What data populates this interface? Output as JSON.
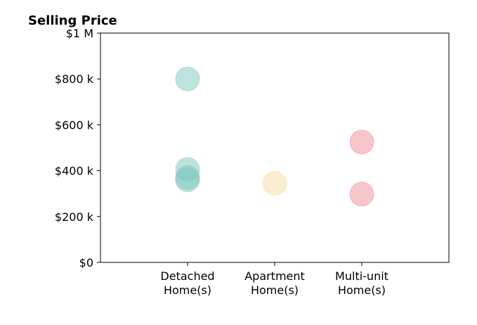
{
  "chart_data": {
    "type": "scatter",
    "title": "Selling Price",
    "xlabel": "",
    "ylabel": "",
    "categories": [
      [
        "Detached",
        "Home(s)"
      ],
      [
        "Apartment",
        "Home(s)"
      ],
      [
        "Multi-unit",
        "Home(s)"
      ]
    ],
    "xlim": [
      -1,
      3
    ],
    "ylim": [
      0,
      1000000
    ],
    "y_ticks": [
      0,
      200000,
      400000,
      600000,
      800000,
      1000000
    ],
    "y_tick_labels": [
      "$0",
      "$200 k",
      "$400 k",
      "$600 k",
      "$800 k",
      "$1 M"
    ],
    "grid": false,
    "points": [
      {
        "category": 0,
        "value": 800000,
        "color": "#7ec8bd"
      },
      {
        "category": 0,
        "value": 405000,
        "color": "#7ec8bd"
      },
      {
        "category": 0,
        "value": 370000,
        "color": "#7ec8bd"
      },
      {
        "category": 0,
        "value": 360000,
        "color": "#7ec8bd"
      },
      {
        "category": 1,
        "value": 345000,
        "color": "#f5dba3"
      },
      {
        "category": 2,
        "value": 525000,
        "color": "#f08d96"
      },
      {
        "category": 2,
        "value": 298000,
        "color": "#f08d96"
      }
    ]
  }
}
